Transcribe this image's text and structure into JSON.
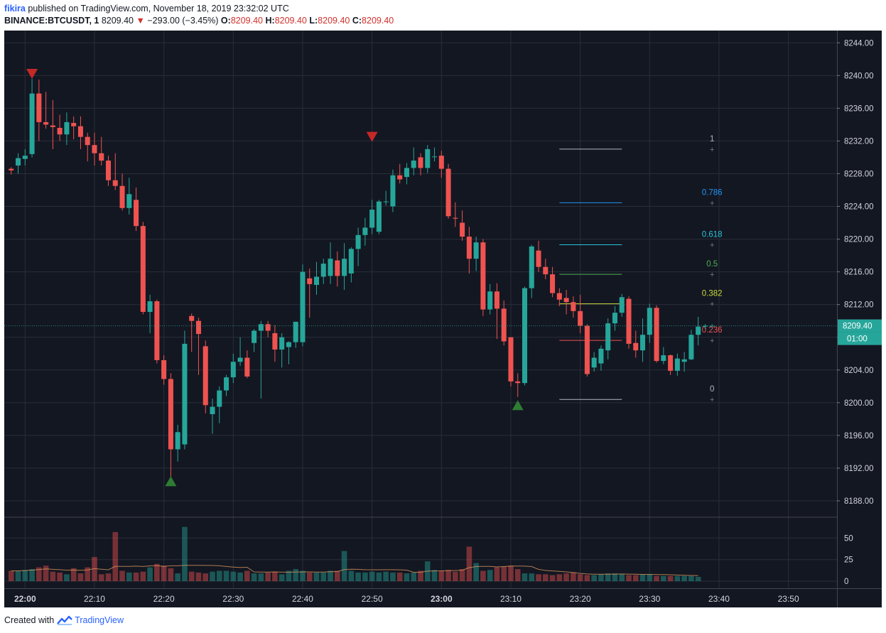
{
  "header": {
    "author": "fikira",
    "published_text": "published on TradingView.com, November 18, 2019 23:32:02 UTC",
    "symbol": "BINANCE:BTCUSDT, 1",
    "last": "8209.40",
    "change": "−293.00 (−3.45%)",
    "o_label": "O:",
    "o": "8209.40",
    "h_label": "H:",
    "h": "8209.40",
    "l_label": "L:",
    "l": "8209.40",
    "c_label": "C:",
    "c": "8209.40"
  },
  "footer": {
    "created_with": "Created with",
    "brand": "TradingView"
  },
  "colors": {
    "background": "#131722",
    "grid": "#2a2e39",
    "up": "#26a69a",
    "down": "#ef5350",
    "axis_text": "#d1d4dc",
    "price_tag": "#26a69a",
    "marker_up": "#2e7d32",
    "marker_down": "#c62828"
  },
  "chart_data": {
    "type": "candlestick",
    "symbol": "BINANCE:BTCUSDT",
    "interval_min": 1,
    "y_ticks": [
      8188,
      8192,
      8196,
      8200,
      8204,
      8208,
      8212,
      8216,
      8220,
      8224,
      8228,
      8232,
      8236,
      8240,
      8244
    ],
    "y_tick_labels": [
      "8188.00",
      "8192.00",
      "8196.00",
      "8200.00",
      "8204.00",
      "8208.00",
      "8212.00",
      "8216.00",
      "8220.00",
      "8224.00",
      "8228.00",
      "8232.00",
      "8236.00",
      "8240.00",
      "8244.00"
    ],
    "ylim": [
      8186,
      8245.5
    ],
    "x_ticks": [
      "22:00",
      "22:10",
      "22:20",
      "22:30",
      "22:40",
      "22:50",
      "23:00",
      "23:10",
      "23:20",
      "23:30",
      "23:40",
      "23:50"
    ],
    "x_tick_minutes": [
      0,
      10,
      20,
      30,
      40,
      50,
      60,
      70,
      80,
      90,
      100,
      110
    ],
    "x_range_minutes": [
      -3,
      117
    ],
    "candles": [
      [
        -2,
        8228.6,
        8228.8,
        8227.9,
        8228.4
      ],
      [
        -1,
        8229.0,
        8230.5,
        8228.0,
        8229.9
      ],
      [
        0,
        8229.8,
        8231.0,
        8229.0,
        8230.2
      ],
      [
        1,
        8230.4,
        8239.6,
        8230.0,
        8237.8
      ],
      [
        2,
        8237.8,
        8239.5,
        8232.0,
        8234.3
      ],
      [
        3,
        8234.3,
        8238.0,
        8233.5,
        8234.0
      ],
      [
        4,
        8233.9,
        8237.0,
        8231.0,
        8233.7
      ],
      [
        5,
        8233.6,
        8235.2,
        8232.0,
        8232.8
      ],
      [
        6,
        8232.8,
        8235.5,
        8231.5,
        8234.3
      ],
      [
        7,
        8234.2,
        8235.0,
        8232.2,
        8233.8
      ],
      [
        8,
        8233.8,
        8235.0,
        8231.0,
        8232.5
      ],
      [
        9,
        8232.5,
        8233.0,
        8229.5,
        8231.5
      ],
      [
        10,
        8231.5,
        8233.0,
        8229.0,
        8230.5
      ],
      [
        11,
        8230.5,
        8232.5,
        8229.0,
        8229.6
      ],
      [
        12,
        8229.6,
        8230.2,
        8226.5,
        8227.2
      ],
      [
        13,
        8227.2,
        8230.5,
        8226.0,
        8226.5
      ],
      [
        14,
        8226.5,
        8228.0,
        8223.5,
        8223.8
      ],
      [
        15,
        8223.8,
        8227.5,
        8223.0,
        8225.5
      ],
      [
        16,
        8224.8,
        8226.3,
        8221.0,
        8221.6
      ],
      [
        17,
        8221.6,
        8222.1,
        8210.8,
        8211.1
      ],
      [
        18,
        8211.1,
        8213.2,
        8208.5,
        8212.4
      ],
      [
        19,
        8212.4,
        8212.6,
        8204.8,
        8205.2
      ],
      [
        20,
        8205.2,
        8205.8,
        8202.2,
        8202.9
      ],
      [
        21,
        8202.9,
        8203.6,
        8190.8,
        8194.3
      ],
      [
        22,
        8194.3,
        8197.3,
        8192.8,
        8196.4
      ],
      [
        23,
        8194.9,
        8208.8,
        8194.3,
        8207.2
      ],
      [
        24,
        8210.6,
        8210.9,
        8206.2,
        8210.0
      ],
      [
        25,
        8210.0,
        8210.4,
        8203.4,
        8208.4
      ],
      [
        26,
        8206.9,
        8207.6,
        8198.7,
        8199.7
      ],
      [
        27,
        8198.6,
        8200.5,
        8196.2,
        8199.5
      ],
      [
        28,
        8199.5,
        8202.0,
        8197.5,
        8201.5
      ],
      [
        29,
        8201.5,
        8203.4,
        8200.8,
        8203.1
      ],
      [
        30,
        8203.1,
        8206.0,
        8202.4,
        8205.0
      ],
      [
        31,
        8205.0,
        8208.0,
        8204.5,
        8205.5
      ],
      [
        32,
        8205.5,
        8206.4,
        8203.0,
        8203.2
      ],
      [
        33,
        8207.3,
        8209.0,
        8206.2,
        8208.8
      ],
      [
        34,
        8208.8,
        8210.0,
        8200.5,
        8209.6
      ],
      [
        35,
        8209.6,
        8210.0,
        8208.0,
        8208.8
      ],
      [
        36,
        8208.5,
        8209.5,
        8205.0,
        8206.5
      ],
      [
        37,
        8206.5,
        8208.5,
        8204.3,
        8208.0
      ],
      [
        38,
        8206.8,
        8207.5,
        8204.7,
        8207.4
      ],
      [
        39,
        8207.4,
        8209.7,
        8206.7,
        8209.9
      ],
      [
        40,
        8207.4,
        8216.9,
        8206.9,
        8216.0
      ],
      [
        41,
        8215.2,
        8216.4,
        8210.4,
        8214.5
      ],
      [
        42,
        8214.4,
        8217.2,
        8213.2,
        8215.4
      ],
      [
        43,
        8215.4,
        8217.6,
        8214.5,
        8217.0
      ],
      [
        44,
        8215.5,
        8219.6,
        8214.5,
        8217.6
      ],
      [
        45,
        8217.4,
        8218.5,
        8214.2,
        8215.5
      ],
      [
        46,
        8215.5,
        8219.5,
        8213.8,
        8217.6
      ],
      [
        47,
        8215.8,
        8219.0,
        8214.7,
        8218.8
      ],
      [
        48,
        8218.8,
        8221.4,
        8216.7,
        8220.5
      ],
      [
        49,
        8220.5,
        8222.6,
        8219.2,
        8221.4
      ],
      [
        50,
        8221.4,
        8224.8,
        8220.6,
        8223.6
      ],
      [
        51,
        8220.9,
        8224.8,
        8220.6,
        8224.6
      ],
      [
        52,
        8224.6,
        8225.9,
        8224.1,
        8224.6
      ],
      [
        53,
        8224.0,
        8228.5,
        8223.3,
        8227.8
      ],
      [
        54,
        8227.8,
        8229.2,
        8226.8,
        8227.3
      ],
      [
        55,
        8227.6,
        8229.3,
        8226.7,
        8228.7
      ],
      [
        56,
        8228.7,
        8231.2,
        8227.8,
        8229.6
      ],
      [
        57,
        8230.0,
        8230.5,
        8227.8,
        8228.7
      ],
      [
        58,
        8228.7,
        8231.5,
        8228.1,
        8231.0
      ],
      [
        59,
        8230.1,
        8231.2,
        8229.5,
        8230.1
      ],
      [
        60,
        8230.2,
        8230.8,
        8227.5,
        8228.6
      ],
      [
        61,
        8228.6,
        8229.2,
        8222.5,
        8222.8
      ],
      [
        62,
        8222.6,
        8224.5,
        8221.5,
        8222.5
      ],
      [
        63,
        8222.0,
        8223.5,
        8219.8,
        8220.3
      ],
      [
        64,
        8220.3,
        8221.5,
        8215.8,
        8217.6
      ],
      [
        65,
        8217.6,
        8220.3,
        8216.1,
        8219.6
      ],
      [
        66,
        8219.6,
        8220.0,
        8210.6,
        8211.4
      ],
      [
        67,
        8211.4,
        8214.5,
        8210.8,
        8213.6
      ],
      [
        68,
        8213.6,
        8214.6,
        8207.8,
        8211.5
      ],
      [
        69,
        8211.5,
        8212.5,
        8207.0,
        8207.5
      ],
      [
        70,
        8208.0,
        8208.0,
        8202.0,
        8202.6
      ],
      [
        71,
        8202.6,
        8203.6,
        8200.7,
        8202.4
      ],
      [
        72,
        8202.4,
        8214.2,
        8202.1,
        8214.0
      ],
      [
        73,
        8214.0,
        8219.3,
        8212.8,
        8219.1
      ],
      [
        74,
        8218.6,
        8219.8,
        8216.0,
        8216.6
      ],
      [
        75,
        8216.6,
        8217.6,
        8215.1,
        8215.7
      ],
      [
        76,
        8215.7,
        8216.6,
        8212.9,
        8213.4
      ],
      [
        77,
        8213.4,
        8214.0,
        8211.8,
        8212.6
      ],
      [
        78,
        8212.8,
        8213.8,
        8210.8,
        8212.3
      ],
      [
        79,
        8212.3,
        8213.0,
        8210.4,
        8211.2
      ],
      [
        80,
        8211.2,
        8213.2,
        8208.5,
        8209.4
      ],
      [
        81,
        8209.4,
        8209.6,
        8203.2,
        8203.5
      ],
      [
        82,
        8204.3,
        8206.2,
        8203.8,
        8205.5
      ],
      [
        83,
        8204.8,
        8207.0,
        8203.9,
        8206.6
      ],
      [
        84,
        8206.4,
        8210.3,
        8205.3,
        8209.7
      ],
      [
        85,
        8209.7,
        8211.8,
        8208.8,
        8211.0
      ],
      [
        86,
        8211.0,
        8213.3,
        8210.5,
        8212.9
      ],
      [
        87,
        8212.7,
        8213.0,
        8206.6,
        8207.2
      ],
      [
        88,
        8207.3,
        8208.8,
        8205.5,
        8206.4
      ],
      [
        89,
        8206.4,
        8210.3,
        8205.0,
        8208.3
      ],
      [
        90,
        8208.3,
        8212.1,
        8207.3,
        8211.6
      ],
      [
        91,
        8211.6,
        8211.9,
        8204.9,
        8205.1
      ],
      [
        92,
        8205.1,
        8206.8,
        8204.7,
        8205.8
      ],
      [
        93,
        8205.8,
        8205.9,
        8203.4,
        8203.9
      ],
      [
        94,
        8203.9,
        8206.0,
        8203.3,
        8205.4
      ],
      [
        95,
        8205.0,
        8206.2,
        8203.8,
        8205.3
      ],
      [
        96,
        8205.3,
        8208.9,
        8205.2,
        8208.3
      ],
      [
        97,
        8208.3,
        8210.5,
        8207.0,
        8209.3
      ],
      [
        98,
        8209.3,
        8209.6,
        8209.0,
        8209.4
      ],
      [
        99,
        8209.4,
        8209.6,
        8209.3,
        8209.4
      ]
    ],
    "volume_ticks": [
      0,
      25,
      50
    ],
    "volume_ylim": [
      0,
      66
    ],
    "volume": [
      12,
      12,
      13,
      14,
      16,
      18,
      11,
      10,
      8,
      12,
      9,
      16,
      11,
      8,
      9,
      12,
      12,
      10,
      10,
      11,
      16,
      20,
      18,
      15,
      9,
      20,
      11,
      10,
      9,
      11,
      12,
      12,
      11,
      10,
      12,
      9,
      9,
      10,
      11,
      8,
      12,
      14,
      12,
      10,
      10,
      10,
      12,
      12,
      10,
      12,
      10,
      10,
      11,
      10,
      11,
      10,
      10,
      9,
      10,
      12,
      8,
      13,
      12,
      13,
      11,
      14,
      14,
      21,
      12,
      13,
      16,
      17,
      18,
      14,
      9,
      9,
      8,
      8,
      7,
      8,
      9,
      10,
      8,
      7,
      7,
      8,
      9,
      9,
      8,
      7,
      7,
      8,
      8,
      6,
      6,
      6,
      6,
      6,
      6,
      5
    ],
    "volume_override": {
      "12": 28,
      "9": 15,
      "15": 57,
      "25": 63,
      "48": 35,
      "60": 23,
      "66": 40
    },
    "markers": [
      {
        "minute": 1,
        "type": "down",
        "price": 8240.2
      },
      {
        "minute": 21,
        "type": "up",
        "price": 8190.4
      },
      {
        "minute": 50,
        "type": "down",
        "price": 8232.5
      },
      {
        "minute": 71,
        "type": "up",
        "price": 8199.7
      }
    ],
    "fib": {
      "start_minute": 77,
      "end_minute": 86,
      "label_minute": 99,
      "price_high": 8231.0,
      "price_low": 8200.4,
      "levels": [
        {
          "ratio": 1,
          "label": "1",
          "color": "#b2b5be"
        },
        {
          "ratio": 0.786,
          "label": "0.786",
          "color": "#2196f3"
        },
        {
          "ratio": 0.618,
          "label": "0.618",
          "color": "#26c6da"
        },
        {
          "ratio": 0.5,
          "label": "0.5",
          "color": "#4caf50"
        },
        {
          "ratio": 0.382,
          "label": "0.382",
          "color": "#cddc39"
        },
        {
          "ratio": 0.236,
          "label": "0.236",
          "color": "#ef5350"
        },
        {
          "ratio": 0,
          "label": "0",
          "color": "#b2b5be"
        }
      ]
    },
    "last_price": 8209.4,
    "last_price_label": "8209.40",
    "countdown_label": "01:00"
  }
}
